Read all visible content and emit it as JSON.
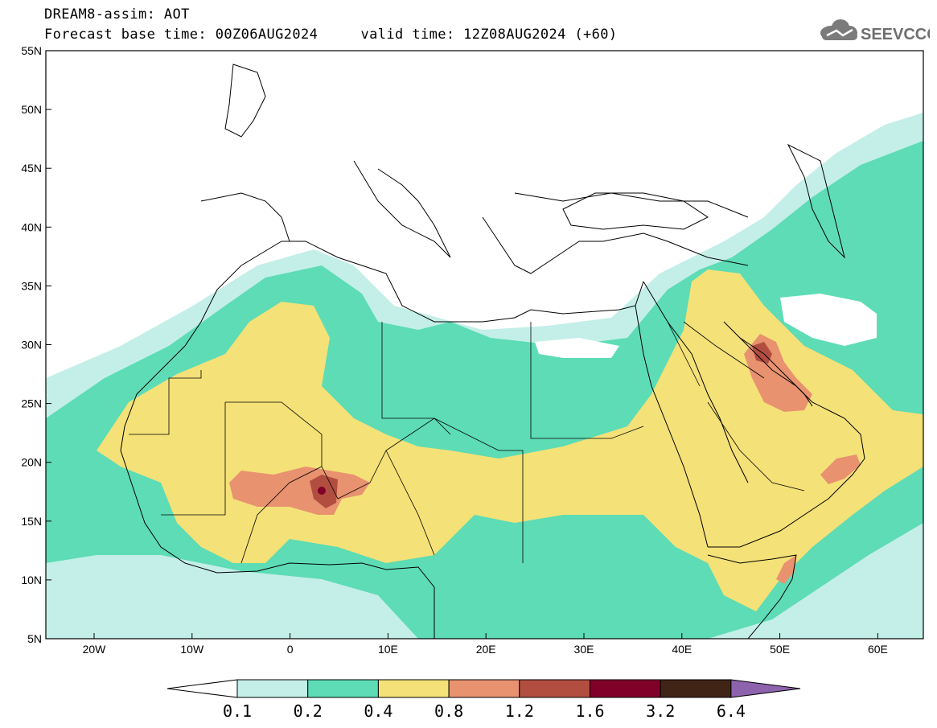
{
  "header": {
    "title": "DREAM8-assim: AOT",
    "base_time_label": "Forecast base time: 00Z06AUG2024",
    "valid_time_label": "valid time: 12Z08AUG2024 (+60)",
    "logo_text": "SEEVCCC"
  },
  "axes": {
    "lon_labels": [
      "20W",
      "10W",
      "0",
      "10E",
      "20E",
      "30E",
      "40E",
      "50E",
      "60E"
    ],
    "lat_labels": [
      "55N",
      "50N",
      "45N",
      "40N",
      "35N",
      "30N",
      "25N",
      "20N",
      "15N",
      "10N",
      "5N"
    ]
  },
  "colorbar": {
    "labels": [
      "0.1",
      "0.2",
      "0.4",
      "0.8",
      "1.2",
      "1.6",
      "3.2",
      "6.4"
    ],
    "colors": [
      "#c4efe8",
      "#5ddcb5",
      "#f4e178",
      "#e89270",
      "#b14e40",
      "#81002a",
      "#402416",
      "#8e63ad"
    ],
    "lower_end_color": "#ffffff"
  }
}
